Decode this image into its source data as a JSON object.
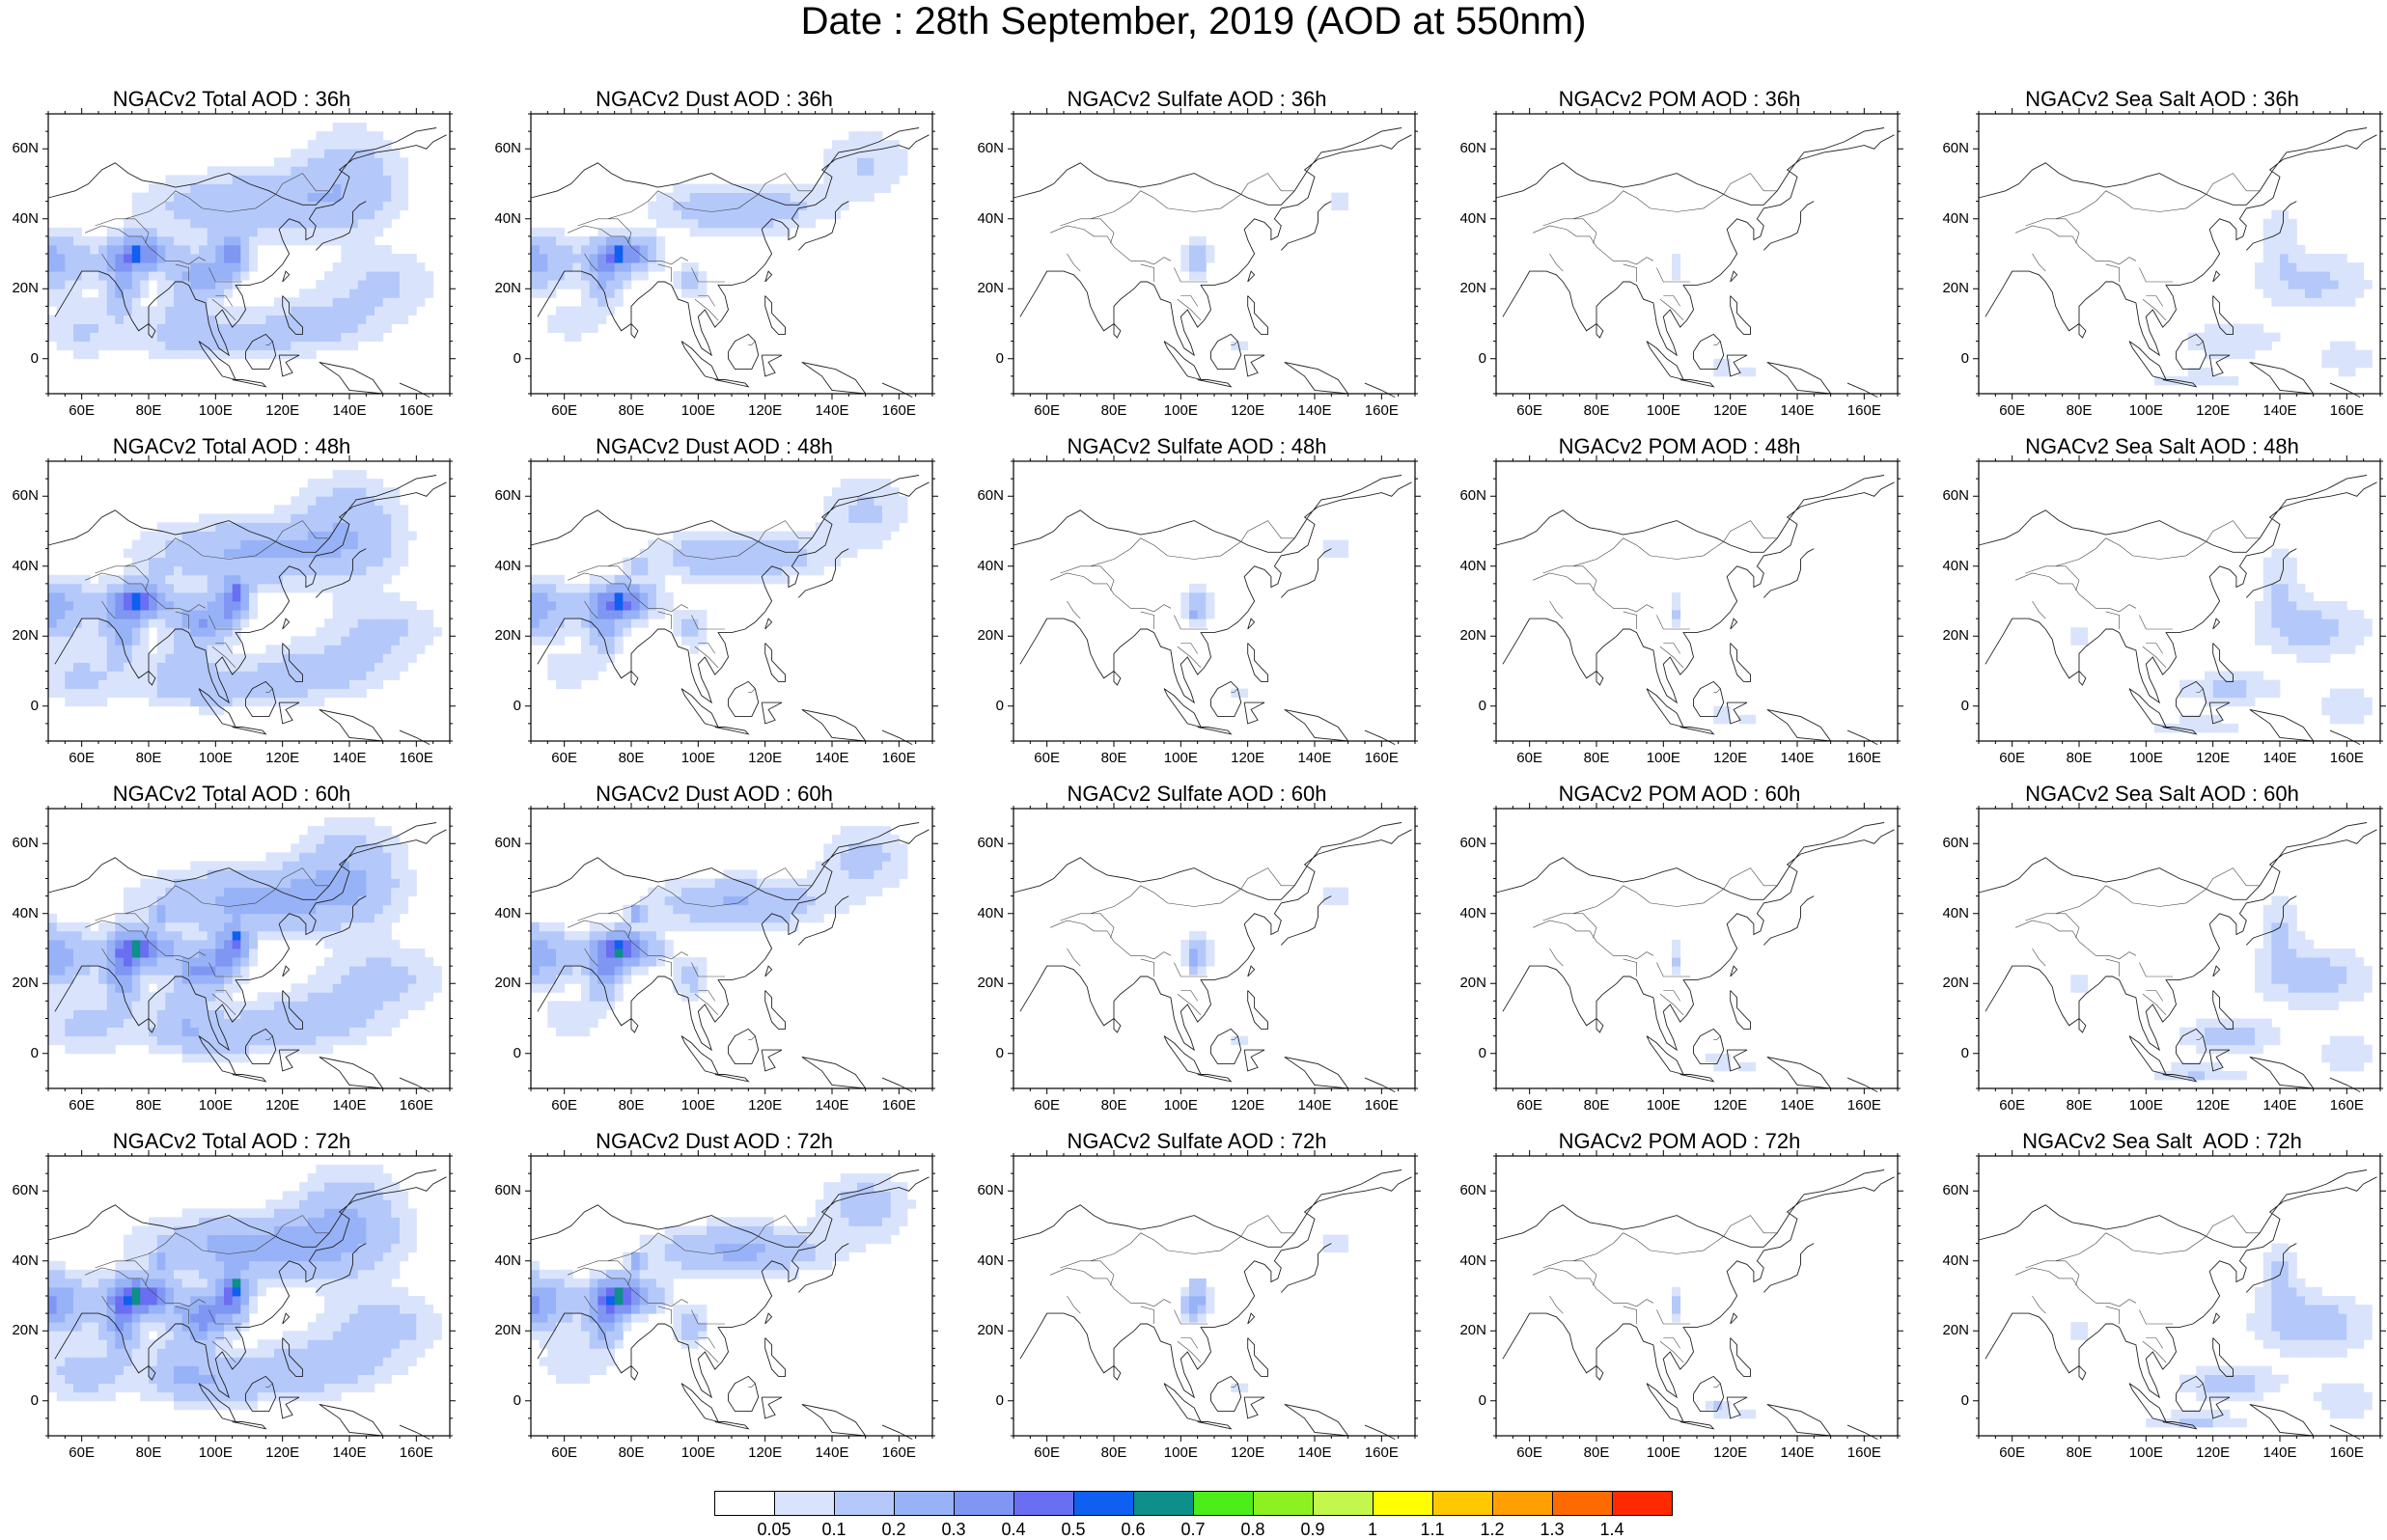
{
  "title": "Date : 28th September, 2019 (AOD at 550nm)",
  "rows": [
    {
      "time": "36h",
      "titles": [
        "NGACv2 Total AOD : 36h",
        "NGACv2 Dust AOD : 36h",
        "NGACv2 Sulfate AOD : 36h",
        "NGACv2 POM AOD : 36h",
        "NGACv2 Sea Salt AOD : 36h"
      ]
    },
    {
      "time": "48h",
      "titles": [
        "NGACv2 Total AOD : 48h",
        "NGACv2 Dust AOD : 48h",
        "NGACv2 Sulfate AOD : 48h",
        "NGACv2 POM AOD : 48h",
        "NGACv2 Sea Salt AOD : 48h"
      ]
    },
    {
      "time": "60h",
      "titles": [
        "NGACv2 Total AOD : 60h",
        "NGACv2 Dust AOD : 60h",
        "NGACv2 Sulfate AOD : 60h",
        "NGACv2 POM AOD : 60h",
        "NGACv2 Sea Salt AOD : 60h"
      ]
    },
    {
      "time": "72h",
      "titles": [
        "NGACv2 Total AOD : 72h",
        "NGACv2 Dust AOD : 72h",
        "NGACv2 Sulfate AOD : 72h",
        "NGACv2 POM AOD : 72h",
        "NGACv2 Sea Salt  AOD : 72h"
      ]
    }
  ],
  "map_extent": {
    "lon": [
      50,
      170
    ],
    "lat": [
      -10,
      70
    ]
  },
  "lat_ticks": [
    {
      "value": 0,
      "label": "0"
    },
    {
      "value": 20,
      "label": "20N"
    },
    {
      "value": 40,
      "label": "40N"
    },
    {
      "value": 60,
      "label": "60N"
    }
  ],
  "lon_ticks": [
    {
      "value": 60,
      "label": "60E"
    },
    {
      "value": 80,
      "label": "80E"
    },
    {
      "value": 100,
      "label": "100E"
    },
    {
      "value": 120,
      "label": "120E"
    },
    {
      "value": 140,
      "label": "140E"
    },
    {
      "value": 160,
      "label": "160E"
    }
  ],
  "colorbar": {
    "labels": [
      "0.05",
      "0.1",
      "0.2",
      "0.3",
      "0.4",
      "0.5",
      "0.6",
      "0.7",
      "0.8",
      "0.9",
      "1",
      "1.1",
      "1.2",
      "1.3",
      "1.4"
    ],
    "colors": [
      "#ffffff",
      "#d9e4fc",
      "#b4c8fa",
      "#97b2f7",
      "#7f96f3",
      "#6a6ef2",
      "#0f5ff0",
      "#0d8f8a",
      "#4ded1a",
      "#8cf021",
      "#c4f74b",
      "#ffff00",
      "#ffc800",
      "#ff9f00",
      "#ff6a00",
      "#ff2a00"
    ]
  }
}
